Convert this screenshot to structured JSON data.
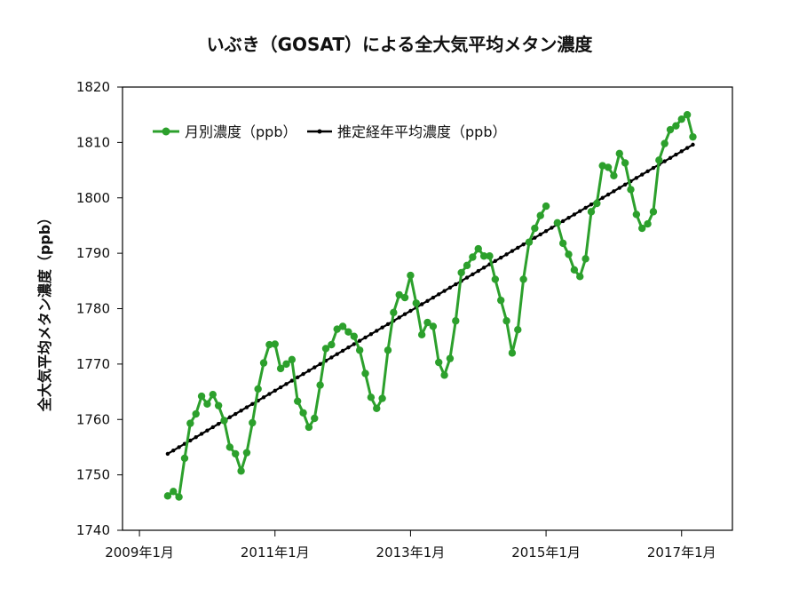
{
  "chart_data": {
    "type": "line",
    "title": "いぶき（GOSAT）による全大気平均メタン濃度",
    "xlabel": "",
    "ylabel": "全大気平均メタン濃度（ppb）",
    "ylim": [
      1740,
      1820
    ],
    "yticks": [
      "1740",
      "1750",
      "1760",
      "1770",
      "1780",
      "1790",
      "1800",
      "1810",
      "1820"
    ],
    "xlim": [
      "2008-10",
      "2017-10"
    ],
    "xticks": [
      {
        "x": "2009-01",
        "label": "2009年1月"
      },
      {
        "x": "2011-01",
        "label": "2011年1月"
      },
      {
        "x": "2013-01",
        "label": "2013年1月"
      },
      {
        "x": "2015-01",
        "label": "2015年1月"
      },
      {
        "x": "2017-01",
        "label": "2017年1月"
      }
    ],
    "grid": false,
    "legend_position": "top-left",
    "series": [
      {
        "name": "月別濃度（ppb）",
        "color": "#2ca02c",
        "marker": "circle",
        "points": [
          [
            "2009-06",
            1746.2
          ],
          [
            "2009-07",
            1747.0
          ],
          [
            "2009-08",
            1746.0
          ],
          [
            "2009-09",
            1753.0
          ],
          [
            "2009-10",
            1759.3
          ],
          [
            "2009-11",
            1761.0
          ],
          [
            "2009-12",
            1764.2
          ],
          [
            "2010-01",
            1762.8
          ],
          [
            "2010-02",
            1764.5
          ],
          [
            "2010-03",
            1762.5
          ],
          [
            "2010-04",
            1759.8
          ],
          [
            "2010-05",
            1755.0
          ],
          [
            "2010-06",
            1753.8
          ],
          [
            "2010-07",
            1750.7
          ],
          [
            "2010-08",
            1754.0
          ],
          [
            "2010-09",
            1759.4
          ],
          [
            "2010-10",
            1765.5
          ],
          [
            "2010-11",
            1770.2
          ],
          [
            "2010-12",
            1773.5
          ],
          [
            "2011-01",
            1773.6
          ],
          [
            "2011-02",
            1769.2
          ],
          [
            "2011-03",
            1770.0
          ],
          [
            "2011-04",
            1770.8
          ],
          [
            "2011-05",
            1763.3
          ],
          [
            "2011-06",
            1761.2
          ],
          [
            "2011-07",
            1758.6
          ],
          [
            "2011-08",
            1760.2
          ],
          [
            "2011-09",
            1766.2
          ],
          [
            "2011-10",
            1772.8
          ],
          [
            "2011-11",
            1773.5
          ],
          [
            "2011-12",
            1776.3
          ],
          [
            "2012-01",
            1776.8
          ],
          [
            "2012-02",
            1775.8
          ],
          [
            "2012-03",
            1775.0
          ],
          [
            "2012-04",
            1772.5
          ],
          [
            "2012-05",
            1768.3
          ],
          [
            "2012-06",
            1764.0
          ],
          [
            "2012-07",
            1762.0
          ],
          [
            "2012-08",
            1763.8
          ],
          [
            "2012-09",
            1772.5
          ],
          [
            "2012-10",
            1779.3
          ],
          [
            "2012-11",
            1782.5
          ],
          [
            "2012-12",
            1782.0
          ],
          [
            "2013-01",
            1786.0
          ],
          [
            "2013-02",
            1781.0
          ],
          [
            "2013-03",
            1775.3
          ],
          [
            "2013-04",
            1777.5
          ],
          [
            "2013-05",
            1776.8
          ],
          [
            "2013-06",
            1770.3
          ],
          [
            "2013-07",
            1768.0
          ],
          [
            "2013-08",
            1771.0
          ],
          [
            "2013-09",
            1777.8
          ],
          [
            "2013-10",
            1786.5
          ],
          [
            "2013-11",
            1787.8
          ],
          [
            "2013-12",
            1789.3
          ],
          [
            "2014-01",
            1790.8
          ],
          [
            "2014-02",
            1789.5
          ],
          [
            "2014-03",
            1789.5
          ],
          [
            "2014-04",
            1785.3
          ],
          [
            "2014-05",
            1781.5
          ],
          [
            "2014-06",
            1777.8
          ],
          [
            "2014-07",
            1772.0
          ],
          [
            "2014-08",
            1776.2
          ],
          [
            "2014-09",
            1785.3
          ],
          [
            "2014-10",
            1792.0
          ],
          [
            "2014-11",
            1794.5
          ],
          [
            "2014-12",
            1796.8
          ],
          [
            "2015-01",
            1798.5
          ],
          null,
          [
            "2015-03",
            1795.5
          ],
          [
            "2015-04",
            1791.8
          ],
          [
            "2015-05",
            1789.8
          ],
          [
            "2015-06",
            1787.0
          ],
          [
            "2015-07",
            1785.8
          ],
          [
            "2015-08",
            1789.0
          ],
          [
            "2015-09",
            1797.5
          ],
          [
            "2015-10",
            1799.0
          ],
          [
            "2015-11",
            1805.8
          ],
          [
            "2015-12",
            1805.5
          ],
          [
            "2016-01",
            1804.0
          ],
          [
            "2016-02",
            1808.0
          ],
          [
            "2016-03",
            1806.3
          ],
          [
            "2016-04",
            1801.5
          ],
          [
            "2016-05",
            1797.0
          ],
          [
            "2016-06",
            1794.5
          ],
          [
            "2016-07",
            1795.3
          ],
          [
            "2016-08",
            1797.5
          ],
          [
            "2016-09",
            1806.8
          ],
          [
            "2016-10",
            1809.8
          ],
          [
            "2016-11",
            1812.3
          ],
          [
            "2016-12",
            1813.0
          ],
          [
            "2017-01",
            1814.2
          ],
          [
            "2017-02",
            1815.0
          ],
          [
            "2017-03",
            1811.0
          ]
        ]
      },
      {
        "name": "推定経年平均濃度（ppb）",
        "color": "#000000",
        "marker": "small-dot",
        "start": [
          "2009-06",
          1753.8
        ],
        "end": [
          "2017-03",
          1809.6
        ]
      }
    ]
  }
}
